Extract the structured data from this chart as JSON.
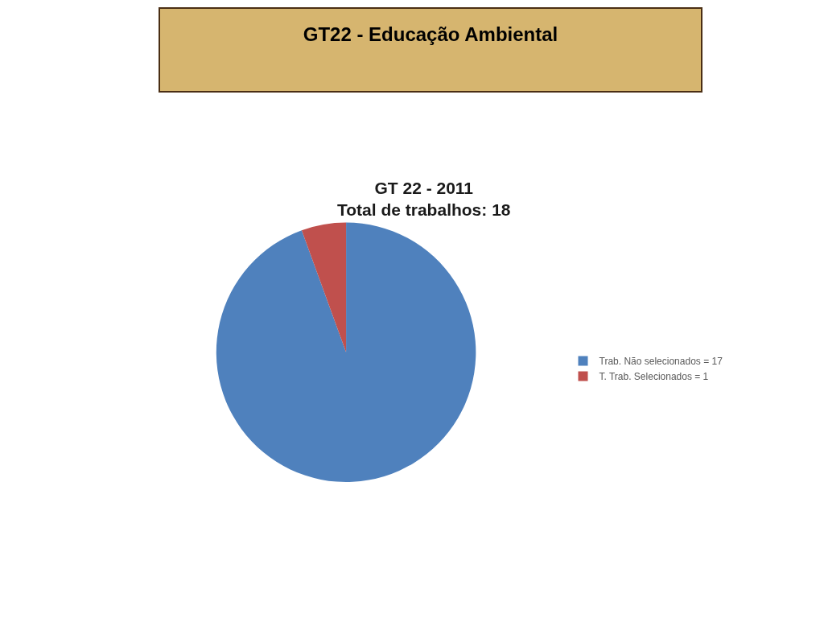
{
  "chart_data": {
    "type": "pie",
    "title": "GT22 - Educação Ambiental",
    "subtitle": "GT 22 - 2011\nTotal de trabalhos: 18",
    "categories": [
      "Trab. Não selecionados = 17",
      "T. Trab. Selecionados = 1"
    ],
    "values": [
      17,
      1
    ],
    "colors": [
      "#4f81bd",
      "#c0504d"
    ],
    "legend": "right"
  }
}
